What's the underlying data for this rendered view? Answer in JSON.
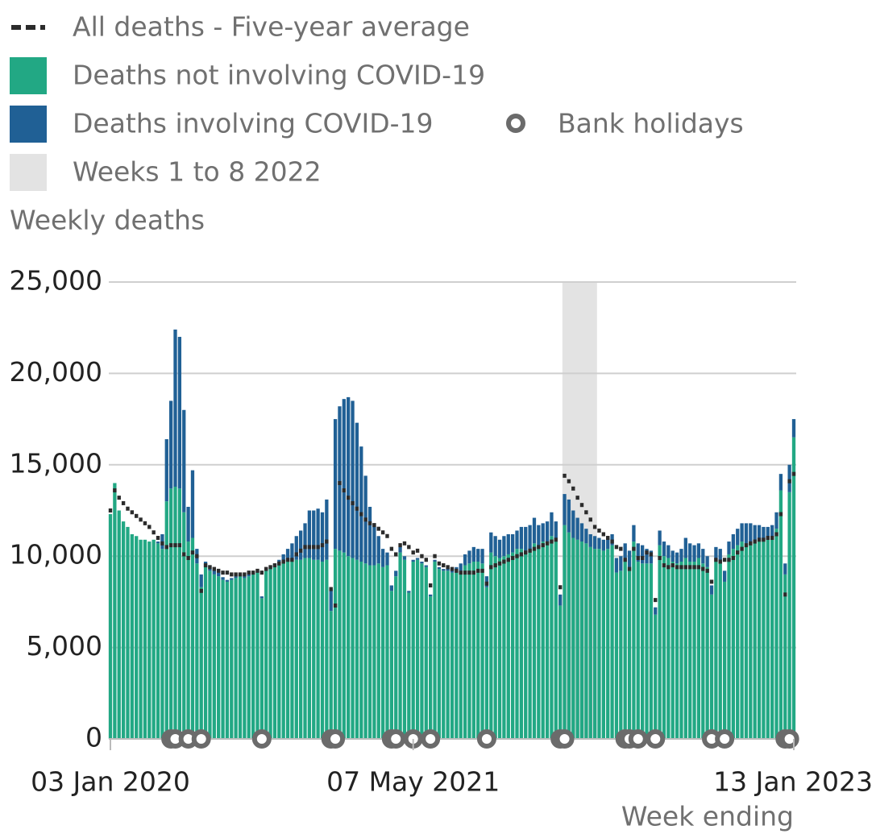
{
  "chart_data": {
    "type": "stacked-bar",
    "y_label": "Weekly deaths",
    "x_label": "Week ending",
    "ylim": [
      0,
      25000
    ],
    "yticks": [
      0,
      {
        "value": 5000,
        "label": "5,000"
      },
      {
        "value": 10000,
        "label": "10,000"
      },
      {
        "value": 15000,
        "label": "15,000"
      },
      {
        "value": 20000,
        "label": "20,000"
      },
      {
        "value": 25000,
        "label": "25,000"
      }
    ],
    "grid": true,
    "categories": [
      "03 Jan 2020",
      null,
      null,
      null,
      null,
      null,
      null,
      null,
      null,
      null,
      null,
      null,
      null,
      null,
      null,
      null,
      null,
      null,
      null,
      null,
      null,
      null,
      null,
      null,
      null,
      null,
      null,
      null,
      null,
      null,
      null,
      null,
      null,
      null,
      null,
      null,
      null,
      null,
      null,
      null,
      null,
      null,
      null,
      null,
      null,
      null,
      null,
      null,
      null,
      null,
      null,
      null,
      null,
      null,
      null,
      null,
      null,
      null,
      null,
      null,
      null,
      null,
      null,
      null,
      null,
      null,
      null,
      null,
      null,
      null,
      "07 May 2021",
      null,
      null,
      null,
      null,
      null,
      null,
      null,
      null,
      null,
      null,
      null,
      null,
      null,
      null,
      null,
      null,
      null,
      null,
      null,
      null,
      null,
      null,
      null,
      null,
      null,
      null,
      null,
      null,
      null,
      null,
      null,
      null,
      null,
      null,
      null,
      null,
      null,
      null,
      null,
      null,
      null,
      null,
      null,
      null,
      null,
      null,
      null,
      null,
      null,
      null,
      null,
      null,
      null,
      null,
      null,
      null,
      null,
      null,
      null,
      null,
      null,
      null,
      null,
      null,
      null,
      null,
      null,
      null,
      null,
      null,
      null,
      null,
      null,
      null,
      null,
      null,
      null,
      null,
      null,
      null,
      null,
      null,
      null,
      null,
      null,
      null,
      null,
      "13 Jan 2023"
    ],
    "series": [
      {
        "name": "Deaths not involving COVID-19",
        "color": "#22a884",
        "values": [
          12300,
          14000,
          12500,
          11900,
          11600,
          11200,
          11100,
          10900,
          10900,
          10800,
          10900,
          10700,
          10400,
          13000,
          13700,
          13800,
          13700,
          12400,
          10800,
          11000,
          9600,
          8300,
          9400,
          9200,
          9000,
          8900,
          8700,
          8600,
          8700,
          8800,
          8900,
          8800,
          8900,
          9000,
          9100,
          7700,
          9200,
          9300,
          9400,
          9500,
          9600,
          9700,
          9700,
          9800,
          9800,
          9900,
          9900,
          9800,
          9800,
          9700,
          9800,
          7000,
          10400,
          10300,
          10200,
          10000,
          9900,
          9800,
          9700,
          9600,
          9500,
          9500,
          9600,
          9400,
          9500,
          8100,
          8900,
          10200,
          9800,
          8000,
          9700,
          9800,
          9600,
          9400,
          7800,
          9700,
          9300,
          9200,
          9200,
          9100,
          9100,
          9200,
          9500,
          9600,
          9700,
          9700,
          9600,
          8300,
          10200,
          10000,
          9900,
          10000,
          10100,
          10200,
          10400,
          10400,
          10300,
          10400,
          10700,
          10600,
          10800,
          10800,
          11100,
          10900,
          7300,
          11700,
          11300,
          11000,
          10900,
          10800,
          10700,
          10500,
          10400,
          10400,
          10300,
          10400,
          10600,
          9100,
          9200,
          9900,
          9400,
          10800,
          9700,
          9600,
          9600,
          9600,
          6800,
          10600,
          10000,
          9900,
          9700,
          9600,
          9700,
          9900,
          9700,
          9700,
          9900,
          9600,
          9400,
          7900,
          9800,
          9700,
          8600,
          10100,
          10400,
          10600,
          10800,
          10700,
          10800,
          10800,
          10900,
          10800,
          10900,
          11000,
          11500,
          13600,
          9000,
          13500,
          16500
        ]
      },
      {
        "name": "Deaths involving COVID-19",
        "color": "#206095",
        "values": [
          0,
          0,
          0,
          0,
          0,
          0,
          0,
          0,
          0,
          0,
          0,
          100,
          800,
          3400,
          4800,
          8600,
          8300,
          5600,
          1900,
          3700,
          800,
          700,
          300,
          300,
          200,
          200,
          150,
          100,
          100,
          100,
          100,
          100,
          100,
          100,
          100,
          100,
          100,
          150,
          200,
          300,
          500,
          700,
          1000,
          1300,
          1600,
          1900,
          2600,
          2700,
          2800,
          2700,
          3300,
          1200,
          7100,
          7900,
          8400,
          8700,
          8600,
          7500,
          6300,
          4800,
          3200,
          2300,
          1500,
          1000,
          700,
          300,
          300,
          300,
          200,
          100,
          100,
          100,
          100,
          100,
          100,
          100,
          100,
          100,
          150,
          200,
          300,
          400,
          600,
          700,
          800,
          700,
          800,
          600,
          1100,
          1100,
          1000,
          1100,
          1100,
          1000,
          1000,
          1200,
          1300,
          1300,
          1400,
          1100,
          1000,
          1100,
          1300,
          1000,
          600,
          1700,
          1800,
          1500,
          1200,
          1000,
          800,
          700,
          700,
          600,
          600,
          600,
          600,
          800,
          800,
          800,
          900,
          900,
          1000,
          1000,
          800,
          700,
          400,
          800,
          800,
          700,
          600,
          600,
          700,
          1100,
          1000,
          900,
          800,
          800,
          600,
          500,
          700,
          700,
          600,
          700,
          800,
          900,
          1000,
          1100,
          1000,
          900,
          800,
          800,
          700,
          700,
          900,
          900,
          600,
          1500,
          1000
        ]
      }
    ],
    "average": {
      "name": "All deaths - Five-year average",
      "color": "#2b2b2b",
      "values": [
        12500,
        13600,
        13200,
        12900,
        12600,
        12400,
        12200,
        12000,
        11800,
        11600,
        11300,
        11000,
        10700,
        10500,
        10600,
        10600,
        10600,
        10100,
        9900,
        10200,
        10000,
        8100,
        9500,
        9400,
        9300,
        9200,
        9100,
        9100,
        9000,
        9000,
        9000,
        9000,
        9100,
        9100,
        9200,
        9100,
        9300,
        9400,
        9500,
        9600,
        9700,
        9800,
        9800,
        10100,
        10300,
        10500,
        10500,
        10500,
        10500,
        10600,
        10800,
        8200,
        7300,
        14000,
        13600,
        13200,
        12900,
        12600,
        12300,
        12000,
        11800,
        11700,
        11500,
        11300,
        11100,
        10400,
        10100,
        10600,
        10700,
        10500,
        10200,
        10300,
        10000,
        9800,
        8400,
        10000,
        9600,
        9500,
        9400,
        9300,
        9200,
        9100,
        9100,
        9100,
        9100,
        9200,
        9200,
        8500,
        9400,
        9500,
        9600,
        9700,
        9800,
        9900,
        10000,
        10100,
        10200,
        10300,
        10400,
        10500,
        10600,
        10700,
        10800,
        10900,
        8300,
        14400,
        14100,
        13700,
        13200,
        12800,
        12400,
        12000,
        11600,
        11400,
        11200,
        11000,
        10800,
        10500,
        10400,
        9800,
        9300,
        10400,
        9900,
        9900,
        10200,
        10100,
        7600,
        9900,
        9500,
        9400,
        9500,
        9400,
        9400,
        9400,
        9400,
        9400,
        9400,
        9300,
        9200,
        8600,
        9800,
        9700,
        9800,
        9800,
        9900,
        10200,
        10400,
        10600,
        10700,
        10800,
        10900,
        10900,
        11000,
        11000,
        11200,
        12300,
        7900,
        14100,
        14500
      ]
    },
    "markers": {
      "name": "Bank holidays",
      "color": "#6b6b6b",
      "weeks": [
        14,
        15,
        18,
        21,
        35,
        51,
        52,
        65,
        66,
        70,
        74,
        87,
        104,
        105,
        119,
        120,
        122,
        126,
        139,
        142,
        156,
        157
      ]
    },
    "highlight": {
      "name": "Weeks 1 to 8 2022",
      "color": "#e3e3e3",
      "from": 105,
      "to": 112
    }
  }
}
